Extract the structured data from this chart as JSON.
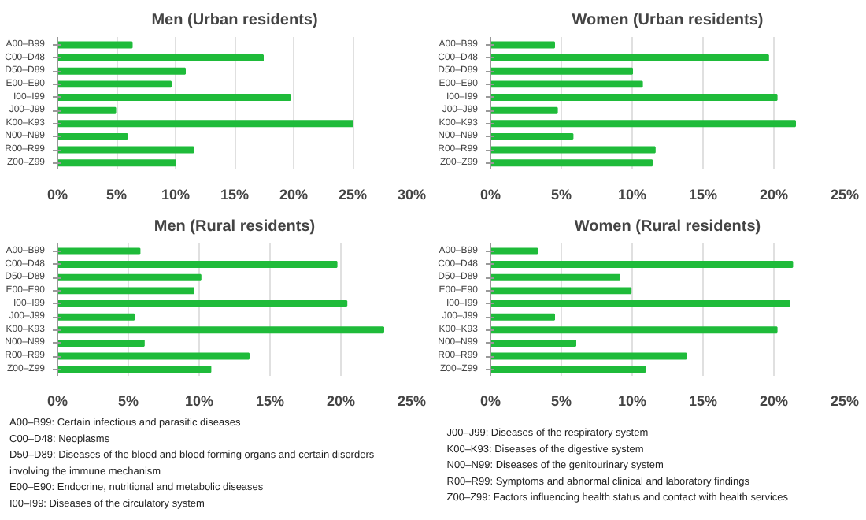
{
  "chart_data": [
    {
      "type": "bar",
      "orientation": "horizontal",
      "title": "Men (Urban residents)",
      "categories": [
        "A00–B99",
        "C00–D48",
        "D50–D89",
        "E00–E90",
        "I00–I99",
        "J00–J99",
        "K00–K93",
        "N00–N99",
        "R00–R99",
        "Z00–Z99"
      ],
      "values": [
        6.3,
        17.4,
        10.8,
        9.6,
        19.7,
        4.9,
        25.0,
        5.9,
        11.5,
        10.0
      ],
      "color": "#1fbb3a",
      "xlim": [
        0,
        30
      ],
      "xticks": [
        {
          "value": 0,
          "label": "0%"
        },
        {
          "value": 5,
          "label": "5%"
        },
        {
          "value": 10,
          "label": "10%"
        },
        {
          "value": 15,
          "label": "15%"
        },
        {
          "value": 20,
          "label": "20%"
        },
        {
          "value": 25,
          "label": "25%"
        },
        {
          "value": 30,
          "label": "30%"
        }
      ],
      "grid": "x"
    },
    {
      "type": "bar",
      "orientation": "horizontal",
      "title": "Women (Urban residents)",
      "categories": [
        "A00–B99",
        "C00–D48",
        "D50–D89",
        "E00–E90",
        "I00–I99",
        "J00–J99",
        "K00–K93",
        "N00–N99",
        "R00–R99",
        "Z00–Z99"
      ],
      "values": [
        4.5,
        19.6,
        10.0,
        10.7,
        20.2,
        4.7,
        21.5,
        5.8,
        11.6,
        11.4
      ],
      "color": "#1fbb3a",
      "xlim": [
        0,
        25
      ],
      "xticks": [
        {
          "value": 0,
          "label": "0%"
        },
        {
          "value": 5,
          "label": "5%"
        },
        {
          "value": 10,
          "label": "10%"
        },
        {
          "value": 15,
          "label": "15%"
        },
        {
          "value": 20,
          "label": "20%"
        },
        {
          "value": 25,
          "label": "25%"
        }
      ],
      "grid": "x"
    },
    {
      "type": "bar",
      "orientation": "horizontal",
      "title": "Men (Rural residents)",
      "categories": [
        "A00–B99",
        "C00–D48",
        "D50–D89",
        "E00–E90",
        "I00–I99",
        "J00–J99",
        "K00–K93",
        "N00–N99",
        "R00–R99",
        "Z00–Z99"
      ],
      "values": [
        5.8,
        19.7,
        10.1,
        9.6,
        20.4,
        5.4,
        23.0,
        6.1,
        13.5,
        10.8
      ],
      "color": "#1fbb3a",
      "xlim": [
        0,
        25
      ],
      "xticks": [
        {
          "value": 0,
          "label": "0%"
        },
        {
          "value": 5,
          "label": "5%"
        },
        {
          "value": 10,
          "label": "10%"
        },
        {
          "value": 15,
          "label": "15%"
        },
        {
          "value": 20,
          "label": "20%"
        },
        {
          "value": 25,
          "label": "25%"
        }
      ],
      "grid": "x"
    },
    {
      "type": "bar",
      "orientation": "horizontal",
      "title": "Women (Rural residents)",
      "categories": [
        "A00–B99",
        "C00–D48",
        "D50–D89",
        "E00–E90",
        "I00–I99",
        "J00–J99",
        "K00–K93",
        "N00–N99",
        "R00–R99",
        "Z00–Z99"
      ],
      "values": [
        3.3,
        21.3,
        9.1,
        9.9,
        21.1,
        4.5,
        20.2,
        6.0,
        13.8,
        10.9
      ],
      "color": "#1fbb3a",
      "xlim": [
        0,
        25
      ],
      "xticks": [
        {
          "value": 0,
          "label": "0%"
        },
        {
          "value": 5,
          "label": "5%"
        },
        {
          "value": 10,
          "label": "10%"
        },
        {
          "value": 15,
          "label": "15%"
        },
        {
          "value": 20,
          "label": "20%"
        },
        {
          "value": 25,
          "label": "25%"
        }
      ],
      "grid": "x"
    },
    {
      "type": "other",
      "annotations": [
        "A00–B99:  Certain infectious and parasitic diseases",
        "C00–D48:  Neoplasms",
        "D50–D89:  Diseases of the blood and blood forming organs and certain disorders involving the immune mechanism",
        "E00–E90:  Endocrine, nutritional and metabolic diseases",
        "I00–I99:  Diseases of the circulatory system",
        "J00–J99:  Diseases of the respiratory system",
        "K00–K93:  Diseases of the digestive system",
        "N00–N99:  Diseases of the genitourinary system",
        "R00–R99:  Symptoms and abnormal clinical and laboratory findings",
        "Z00–Z99:  Factors influencing health status and  contact with health services"
      ]
    }
  ]
}
